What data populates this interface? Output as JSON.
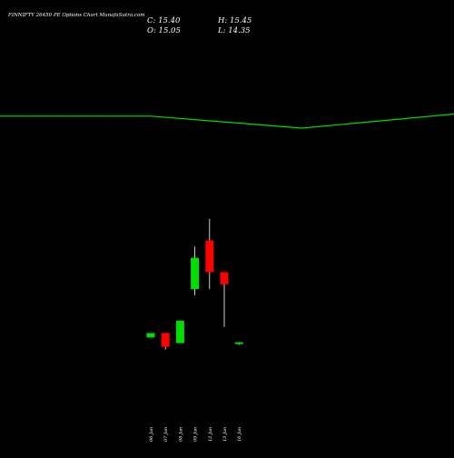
{
  "chart_data": {
    "type": "candlestick",
    "title": "FINNIFTY 26450 PE Options Chart MunafaSutra.com",
    "ohlc_header": {
      "close": "C: 15.40",
      "open": "O: 15.05",
      "high": "H: 15.45",
      "low": "L: 14.35"
    },
    "categories": [
      "06 Jan",
      "07 Jan",
      "08 Jan",
      "09 Jan",
      "12 Jan",
      "13 Jan",
      "16 Jan"
    ],
    "candles": [
      {
        "date": "06 Jan",
        "open": 17.25,
        "high": 19.0,
        "low": 17.25,
        "close": 19.0,
        "direction": "up"
      },
      {
        "date": "07 Jan",
        "open": 19.0,
        "high": 19.0,
        "low": 12.56,
        "close": 13.6,
        "direction": "down"
      },
      {
        "date": "08 Jan",
        "open": 15.05,
        "high": 23.8,
        "low": 15.05,
        "close": 23.8,
        "direction": "up"
      },
      {
        "date": "09 Jan",
        "open": 36.13,
        "high": 52.75,
        "low": 33.75,
        "close": 48.38,
        "direction": "up"
      },
      {
        "date": "12 Jan",
        "open": 55.13,
        "high": 63.58,
        "low": 36.13,
        "close": 42.78,
        "direction": "down"
      },
      {
        "date": "13 Jan",
        "open": 42.78,
        "high": 42.78,
        "low": 21.4,
        "close": 38.03,
        "direction": "down"
      },
      {
        "date": "16 Jan",
        "open": 15.05,
        "high": 15.45,
        "low": 14.35,
        "close": 15.4,
        "direction": "up"
      }
    ],
    "overlay_line": {
      "color": "#00dd00",
      "points": [
        {
          "x": 0,
          "y": 103.7
        },
        {
          "x": 0.333,
          "y": 103.7
        },
        {
          "x": 0.665,
          "y": 99.0
        },
        {
          "x": 1.0,
          "y": 104.5
        }
      ]
    },
    "colors": {
      "up": "#00dd00",
      "down": "#ff0000",
      "background": "#000000",
      "text": "#ffffff",
      "wick": "#ffffff"
    },
    "price_range": [
      0,
      110
    ],
    "grid": false,
    "legend": "none"
  }
}
